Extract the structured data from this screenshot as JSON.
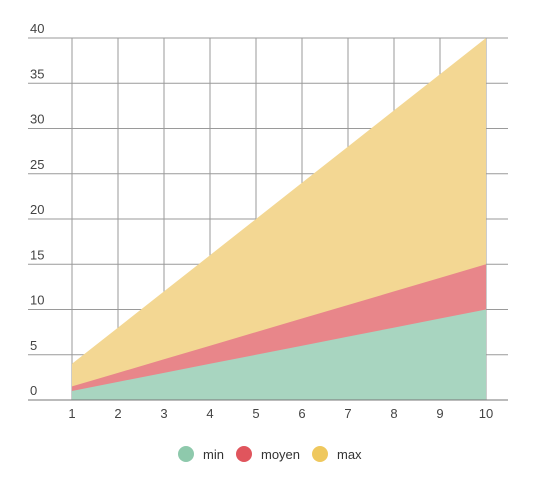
{
  "chart_data": {
    "type": "area",
    "stacked": true,
    "x": [
      1,
      2,
      3,
      4,
      5,
      6,
      7,
      8,
      9,
      10
    ],
    "series": [
      {
        "name": "min",
        "values": [
          1,
          2,
          3,
          4,
          5,
          6,
          7,
          8,
          9,
          10
        ],
        "color": "#a8d5c0"
      },
      {
        "name": "moyen",
        "values": [
          1.5,
          3,
          4.5,
          6,
          7.5,
          9,
          10.5,
          12,
          13.5,
          15
        ],
        "color": "#e8868a"
      },
      {
        "name": "max",
        "values": [
          4,
          8,
          12,
          16,
          20,
          24,
          28,
          32,
          36,
          40
        ],
        "color": "#f3d793"
      }
    ],
    "legend_colors": {
      "min": "#8ec9ac",
      "moyen": "#e0555d",
      "max": "#efc85e"
    },
    "xlim": [
      1,
      10
    ],
    "ylim": [
      0,
      40
    ],
    "yticks": [
      0,
      5,
      10,
      15,
      20,
      25,
      30,
      35,
      40
    ],
    "xticks": [
      1,
      2,
      3,
      4,
      5,
      6,
      7,
      8,
      9,
      10
    ],
    "title": "",
    "xlabel": "",
    "ylabel": "",
    "grid": true,
    "legend_position": "bottom-center"
  }
}
